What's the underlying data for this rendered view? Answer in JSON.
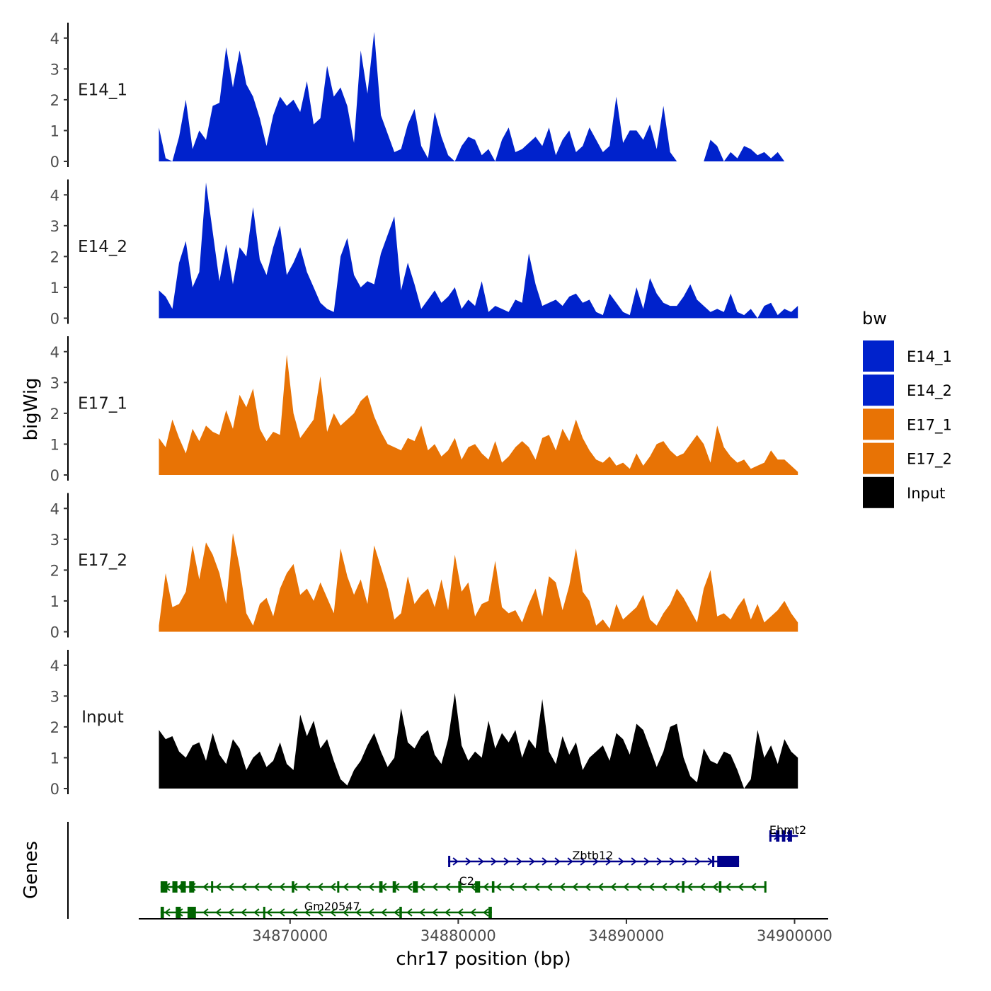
{
  "chart_data": {
    "type": "area",
    "title": "",
    "ylabel": "bigWig",
    "xlabel": "chr17 position (bp)",
    "x_range": [
      34861000,
      34902000
    ],
    "ylim": [
      0,
      4.5
    ],
    "y_ticks": [
      0,
      1,
      2,
      3,
      4
    ],
    "x_ticks": [
      34870000,
      34880000,
      34890000,
      34900000
    ],
    "x_tick_labels": [
      "34870000",
      "34880000",
      "34890000",
      "34900000"
    ],
    "grid": false,
    "tracks_label": "Genes",
    "legend": {
      "title": "bw",
      "placement": "right",
      "entries": [
        {
          "name": "E14_1",
          "color": "#0022CC"
        },
        {
          "name": "E14_2",
          "color": "#0022CC"
        },
        {
          "name": "E17_1",
          "color": "#E87305"
        },
        {
          "name": "E17_2",
          "color": "#E87305"
        },
        {
          "name": "Input",
          "color": "#000000"
        }
      ]
    },
    "series": [
      {
        "name": "E14_1",
        "color": "#0022CC",
        "x_start": 34862200,
        "x_end": 34900200,
        "values": [
          1.1,
          0.1,
          0.0,
          0.8,
          2.0,
          0.4,
          1.0,
          0.7,
          1.8,
          1.9,
          3.7,
          2.4,
          3.6,
          2.5,
          2.1,
          1.4,
          0.5,
          1.5,
          2.1,
          1.8,
          2.0,
          1.6,
          2.6,
          1.2,
          1.4,
          3.1,
          2.1,
          2.4,
          1.8,
          0.6,
          3.6,
          2.2,
          4.2,
          1.5,
          0.9,
          0.3,
          0.4,
          1.2,
          1.7,
          0.5,
          0.1,
          1.6,
          0.8,
          0.2,
          0.0,
          0.5,
          0.8,
          0.7,
          0.2,
          0.4,
          0.0,
          0.7,
          1.1,
          0.3,
          0.4,
          0.6,
          0.8,
          0.5,
          1.1,
          0.2,
          0.7,
          1.0,
          0.3,
          0.5,
          1.1,
          0.7,
          0.3,
          0.5,
          2.1,
          0.6,
          1.0,
          1.0,
          0.7,
          1.2,
          0.4,
          1.8,
          0.3,
          0.0,
          0.0,
          0.0,
          0.0,
          0.0,
          0.7,
          0.5,
          0.0,
          0.3,
          0.1,
          0.5,
          0.4,
          0.2,
          0.3,
          0.1,
          0.3,
          0.0,
          0.0,
          0.0
        ]
      },
      {
        "name": "E14_2",
        "color": "#0022CC",
        "x_start": 34862200,
        "x_end": 34900200,
        "values": [
          0.9,
          0.7,
          0.3,
          1.8,
          2.5,
          1.0,
          1.5,
          4.4,
          2.8,
          1.2,
          2.4,
          1.1,
          2.3,
          2.0,
          3.6,
          1.9,
          1.4,
          2.3,
          3.0,
          1.4,
          1.8,
          2.3,
          1.5,
          1.0,
          0.5,
          0.3,
          0.2,
          2.0,
          2.6,
          1.4,
          1.0,
          1.2,
          1.1,
          2.1,
          2.7,
          3.3,
          0.9,
          1.8,
          1.1,
          0.3,
          0.6,
          0.9,
          0.5,
          0.7,
          1.0,
          0.3,
          0.6,
          0.4,
          1.2,
          0.2,
          0.4,
          0.3,
          0.2,
          0.6,
          0.5,
          2.1,
          1.1,
          0.4,
          0.5,
          0.6,
          0.4,
          0.7,
          0.8,
          0.5,
          0.6,
          0.2,
          0.1,
          0.8,
          0.5,
          0.2,
          0.1,
          1.0,
          0.3,
          1.3,
          0.8,
          0.5,
          0.4,
          0.4,
          0.7,
          1.1,
          0.6,
          0.4,
          0.2,
          0.3,
          0.2,
          0.8,
          0.2,
          0.1,
          0.3,
          0.0,
          0.4,
          0.5,
          0.1,
          0.3,
          0.2,
          0.4
        ]
      },
      {
        "name": "E17_1",
        "color": "#E87305",
        "x_start": 34862200,
        "x_end": 34900200,
        "values": [
          1.2,
          0.9,
          1.8,
          1.2,
          0.7,
          1.5,
          1.1,
          1.6,
          1.4,
          1.3,
          2.1,
          1.5,
          2.6,
          2.2,
          2.8,
          1.5,
          1.1,
          1.4,
          1.3,
          3.9,
          2.0,
          1.2,
          1.5,
          1.8,
          3.2,
          1.4,
          2.0,
          1.6,
          1.8,
          2.0,
          2.4,
          2.6,
          1.9,
          1.4,
          1.0,
          0.9,
          0.8,
          1.2,
          1.1,
          1.6,
          0.8,
          1.0,
          0.6,
          0.8,
          1.2,
          0.5,
          0.9,
          1.0,
          0.7,
          0.5,
          1.1,
          0.4,
          0.6,
          0.9,
          1.1,
          0.9,
          0.5,
          1.2,
          1.3,
          0.8,
          1.5,
          1.1,
          1.8,
          1.2,
          0.8,
          0.5,
          0.4,
          0.6,
          0.3,
          0.4,
          0.2,
          0.7,
          0.3,
          0.6,
          1.0,
          1.1,
          0.8,
          0.6,
          0.7,
          1.0,
          1.3,
          1.0,
          0.4,
          1.6,
          0.9,
          0.6,
          0.4,
          0.5,
          0.2,
          0.3,
          0.4,
          0.8,
          0.5,
          0.5,
          0.3,
          0.1
        ]
      },
      {
        "name": "E17_2",
        "color": "#E87305",
        "x_start": 34862200,
        "x_end": 34900200,
        "values": [
          0.2,
          1.9,
          0.8,
          0.9,
          1.3,
          2.8,
          1.7,
          2.9,
          2.5,
          1.9,
          0.9,
          3.2,
          2.1,
          0.6,
          0.2,
          0.9,
          1.1,
          0.5,
          1.4,
          1.9,
          2.2,
          1.2,
          1.4,
          1.0,
          1.6,
          1.1,
          0.6,
          2.7,
          1.8,
          1.2,
          1.7,
          0.9,
          2.8,
          2.1,
          1.4,
          0.4,
          0.6,
          1.8,
          0.9,
          1.2,
          1.4,
          0.8,
          1.7,
          0.7,
          2.5,
          1.3,
          1.6,
          0.5,
          0.9,
          1.0,
          2.3,
          0.8,
          0.6,
          0.7,
          0.3,
          0.9,
          1.4,
          0.5,
          1.8,
          1.6,
          0.7,
          1.5,
          2.7,
          1.3,
          1.0,
          0.2,
          0.4,
          0.1,
          0.9,
          0.4,
          0.6,
          0.8,
          1.2,
          0.4,
          0.2,
          0.6,
          0.9,
          1.4,
          1.1,
          0.7,
          0.3,
          1.4,
          2.0,
          0.5,
          0.6,
          0.4,
          0.8,
          1.1,
          0.4,
          0.9,
          0.3,
          0.5,
          0.7,
          1.0,
          0.6,
          0.3
        ]
      },
      {
        "name": "Input",
        "color": "#000000",
        "x_start": 34862200,
        "x_end": 34900200,
        "values": [
          1.9,
          1.6,
          1.7,
          1.2,
          1.0,
          1.4,
          1.5,
          0.9,
          1.8,
          1.1,
          0.8,
          1.6,
          1.3,
          0.6,
          1.0,
          1.2,
          0.7,
          0.9,
          1.5,
          0.8,
          0.6,
          2.4,
          1.7,
          2.2,
          1.3,
          1.6,
          0.9,
          0.3,
          0.1,
          0.6,
          0.9,
          1.4,
          1.8,
          1.2,
          0.7,
          1.0,
          2.6,
          1.5,
          1.3,
          1.7,
          1.9,
          1.1,
          0.8,
          1.6,
          3.1,
          1.4,
          0.9,
          1.2,
          1.0,
          2.2,
          1.3,
          1.8,
          1.5,
          1.9,
          1.0,
          1.6,
          1.3,
          2.9,
          1.2,
          0.8,
          1.7,
          1.1,
          1.5,
          0.6,
          1.0,
          1.2,
          1.4,
          0.9,
          1.8,
          1.6,
          1.1,
          2.1,
          1.9,
          1.3,
          0.7,
          1.2,
          2.0,
          2.1,
          1.0,
          0.4,
          0.2,
          1.3,
          0.9,
          0.8,
          1.2,
          1.1,
          0.6,
          0.0,
          0.3,
          1.9,
          1.0,
          1.4,
          0.8,
          1.6,
          1.2,
          1.0
        ]
      }
    ],
    "genes": [
      {
        "name": "Ehmt2",
        "strand": "+",
        "color": "#00008B",
        "row": 1,
        "start": 34898500,
        "end": 34900200,
        "exons": [
          [
            34898500,
            34898560
          ],
          [
            34898900,
            34899100
          ],
          [
            34899250,
            34899450
          ],
          [
            34899600,
            34899850
          ]
        ],
        "label_pos": 34899600
      },
      {
        "name": "Zbtb12",
        "strand": "+",
        "color": "#00008B",
        "row": 2,
        "start": 34879400,
        "end": 34896700,
        "exons": [
          [
            34879400,
            34879450
          ],
          [
            34895100,
            34895200
          ],
          [
            34895400,
            34896700
          ]
        ],
        "label_pos": 34888000
      },
      {
        "name": "C2",
        "strand": "-",
        "color": "#006400",
        "row": 3,
        "start": 34862300,
        "end": 34898300,
        "exons": [
          [
            34862300,
            34862700
          ],
          [
            34863000,
            34863300
          ],
          [
            34863500,
            34863800
          ],
          [
            34864000,
            34864300
          ],
          [
            34865300,
            34865400
          ],
          [
            34870100,
            34870250
          ],
          [
            34872800,
            34872900
          ],
          [
            34875300,
            34875500
          ],
          [
            34876100,
            34876300
          ],
          [
            34877300,
            34877600
          ],
          [
            34880000,
            34880150
          ],
          [
            34881000,
            34881300
          ],
          [
            34882000,
            34882150
          ],
          [
            34893300,
            34893450
          ],
          [
            34895500,
            34895650
          ],
          [
            34898200,
            34898300
          ]
        ],
        "label_pos": 34880500
      },
      {
        "name": "Gm20547",
        "strand": "-",
        "color": "#006400",
        "row": 4,
        "start": 34862300,
        "end": 34882000,
        "exons": [
          [
            34862300,
            34862500
          ],
          [
            34863200,
            34863500
          ],
          [
            34863900,
            34864400
          ],
          [
            34868400,
            34868500
          ],
          [
            34876500,
            34876650
          ],
          [
            34881800,
            34882000
          ]
        ],
        "label_pos": 34872500
      }
    ]
  }
}
